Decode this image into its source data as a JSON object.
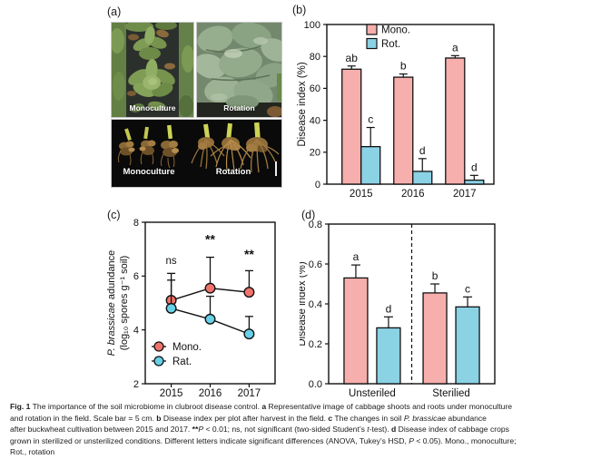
{
  "panels": {
    "a": {
      "label": "(a)",
      "photos": {
        "top_left_label": "Monoculture",
        "top_right_label": "Rotation",
        "bottom_left_label": "Monoculture",
        "bottom_right_label": "Rotation"
      }
    },
    "b": {
      "label": "(b)"
    },
    "c": {
      "label": "(c)"
    },
    "d": {
      "label": "(d)"
    }
  },
  "colors": {
    "bar_pink": "#F6AFAC",
    "bar_blue": "#8BD2E5",
    "marker_pink": "#F0736B",
    "marker_blue": "#67D1E8",
    "axis": "#111111"
  },
  "chart_data": [
    {
      "id": "b",
      "type": "bar",
      "title": "",
      "categories": [
        "2015",
        "2016",
        "2017"
      ],
      "series": [
        {
          "name": "Mono.",
          "color_key": "bar_pink",
          "values": [
            72,
            67,
            79
          ],
          "errors": [
            2,
            2,
            1.5
          ],
          "sig_letters": [
            "ab",
            "b",
            "a"
          ]
        },
        {
          "name": "Rot.",
          "color_key": "bar_blue",
          "values": [
            23.5,
            8,
            2.5
          ],
          "errors": [
            12,
            8,
            3
          ],
          "sig_letters": [
            "c",
            "d",
            "d"
          ]
        }
      ],
      "xlabel": "",
      "ylabel": "Disease index (%)",
      "ylim": [
        0,
        100
      ],
      "yticks": [
        "0",
        "20",
        "40",
        "60",
        "80",
        "100"
      ],
      "grid": false,
      "legend_position": "top-left-inside"
    },
    {
      "id": "c",
      "type": "line",
      "title": "",
      "categories": [
        "2015",
        "2016",
        "2017"
      ],
      "series": [
        {
          "name": "Mono.",
          "color_key": "marker_pink",
          "values": [
            5.1,
            5.55,
            5.4
          ],
          "errors_up": [
            1.0,
            1.15,
            0.8
          ]
        },
        {
          "name": "Rat.",
          "color_key": "marker_blue",
          "values": [
            4.8,
            4.4,
            3.85
          ],
          "errors_up": [
            1.05,
            0.85,
            0.65
          ]
        }
      ],
      "annotations": [
        {
          "ci": 0,
          "text": "ns",
          "y": 6.45
        },
        {
          "ci": 1,
          "text": "**",
          "y": 7.2
        },
        {
          "ci": 2,
          "text": "**",
          "y": 6.65
        }
      ],
      "xlabel": "",
      "ylabel_italic": "P. brassicae",
      "ylabel_rest": " adundance",
      "ylabel_line2": "(log₁₀ spores g⁻¹ soil)",
      "ylim": [
        2,
        8
      ],
      "yticks": [
        "2",
        "4",
        "6",
        "8"
      ],
      "grid": false,
      "legend_position": "bottom-left-inside"
    },
    {
      "id": "d",
      "type": "bar",
      "title": "",
      "categories": [
        "Unsteriled",
        "Sterilied"
      ],
      "series": [
        {
          "name": "Mono.",
          "color_key": "bar_pink",
          "values": [
            0.53,
            0.455
          ],
          "errors": [
            0.065,
            0.045
          ],
          "sig_letters": [
            "a",
            "b"
          ]
        },
        {
          "name": "Rot.",
          "color_key": "bar_blue",
          "values": [
            0.28,
            0.385
          ],
          "errors": [
            0.055,
            0.05
          ],
          "sig_letters": [
            "d",
            "c"
          ]
        }
      ],
      "xlabel": "",
      "ylabel": "Disease index (%)",
      "ylim": [
        0,
        0.8
      ],
      "yticks": [
        "0.0",
        "0.2",
        "0.4",
        "0.6",
        "0.8"
      ],
      "divider": true,
      "grid": false,
      "legend_position": "none"
    }
  ],
  "caption": {
    "lines": [
      [
        {
          "t": "Fig. 1",
          "b": true
        },
        {
          "t": "  The importance of the soil microbiome in clubroot disease control. "
        },
        {
          "t": "a",
          "b": true
        },
        {
          "t": " Representative image of cabbage shoots and roots under monoculture"
        }
      ],
      [
        {
          "t": "and rotation in the field. Scale bar = 5 cm. "
        },
        {
          "t": "b",
          "b": true
        },
        {
          "t": " Disease index per plot after harvest in the field. "
        },
        {
          "t": "c",
          "b": true
        },
        {
          "t": " The changes in soil "
        },
        {
          "t": "P. brassicae",
          "i": true
        },
        {
          "t": " abundance"
        }
      ],
      [
        {
          "t": "after buckwheat cultivation between 2015 and 2017. "
        },
        {
          "t": "**",
          "b": true
        },
        {
          "t": "P",
          "i": true
        },
        {
          "t": " < 0.01; ns, not significant (two-sided Student’s "
        },
        {
          "t": "t",
          "i": true
        },
        {
          "t": "-test). "
        },
        {
          "t": "d",
          "b": true
        },
        {
          "t": " Disease index of cabbage crops"
        }
      ],
      [
        {
          "t": "grown in sterilized or unsterilized conditions. Different letters indicate significant differences (ANOVA, Tukey’s HSD, "
        },
        {
          "t": "P",
          "i": true
        },
        {
          "t": " < 0.05). Mono., monoculture;"
        }
      ],
      [
        {
          "t": "Rot., rotation"
        }
      ]
    ]
  }
}
